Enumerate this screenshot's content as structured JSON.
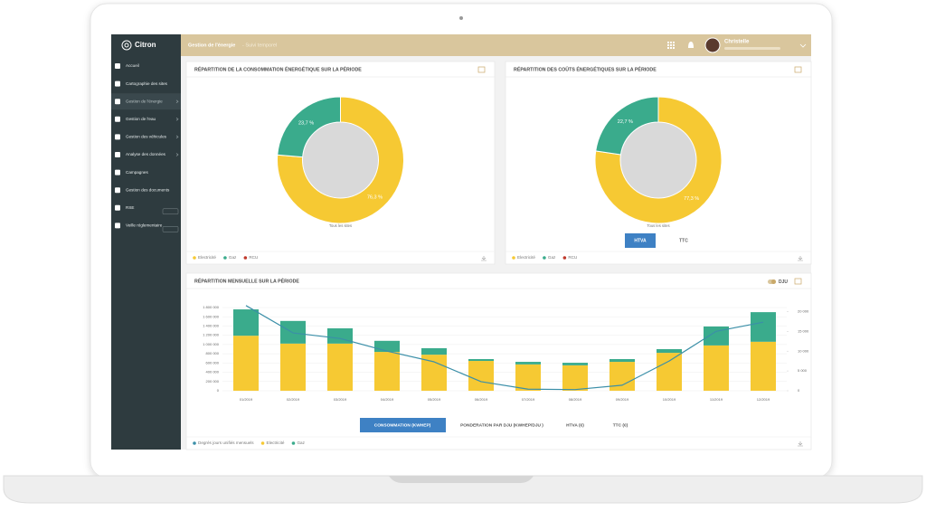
{
  "app": {
    "logo": "Citron",
    "menu": [
      "Accueil",
      "Cartographie des sites",
      "Gestion de l'énergie",
      "Gestion de l'eau",
      "Gestion des véhicules",
      "Analyse des données",
      "Campagnes",
      "Gestion des documents",
      "RSE",
      "Veille réglementaire"
    ]
  },
  "header": {
    "title": "Gestion de l'énergie",
    "subtitle": "- Suivi temporel",
    "user": "Christelle"
  },
  "chart_data": [
    {
      "type": "donut",
      "title": "RÉPARTITION DE LA CONSOMMATION ÉNERGÉTIQUE SUR LA PÉRIODE",
      "categories": [
        "Electricité",
        "Gaz",
        "RCU"
      ],
      "values": [
        76.3,
        23.7,
        null
      ],
      "value_labels": [
        "76,3 %",
        "23,7 %",
        null
      ],
      "colors": [
        "#f6c933",
        "#3aab8c",
        "#c0392b"
      ],
      "caption": "Tous les sites"
    },
    {
      "type": "donut",
      "title": "RÉPARTITION DES COÛTS ÉNERGÉTIQUES SUR LA PÉRIODE",
      "categories": [
        "Electricité",
        "Gaz",
        "RCU"
      ],
      "values": [
        77.3,
        22.7,
        null
      ],
      "value_labels": [
        "77,3 %",
        "22,7 %",
        null
      ],
      "colors": [
        "#f6c933",
        "#3aab8c",
        "#c0392b"
      ],
      "caption": "Tous les sites",
      "toggle": [
        "HTVA",
        "TTC"
      ]
    },
    {
      "type": "stacked_bar",
      "title": "RÉPARTITION MENSUELLE SUR LA PÉRIODE",
      "y2_toggle_label": "DJU",
      "categories": [
        "01/2019",
        "02/2019",
        "03/2019",
        "04/2019",
        "05/2019",
        "06/2019",
        "07/2019",
        "08/2019",
        "09/2019",
        "10/2019",
        "11/2019",
        "12/2019"
      ],
      "series": [
        {
          "name": "Degrés jours unifiés mensuels",
          "type": "line",
          "axis": "y2",
          "color": "#3b8fa8",
          "values": [
            21500,
            14600,
            13200,
            10000,
            7300,
            2300,
            400,
            300,
            1400,
            7500,
            15000,
            17300
          ]
        },
        {
          "name": "Electricité",
          "type": "bar",
          "color": "#f6c933",
          "values": [
            1190000,
            1020000,
            1020000,
            840000,
            780000,
            645000,
            570000,
            550000,
            625000,
            820000,
            980000,
            1060000
          ]
        },
        {
          "name": "Gaz",
          "type": "bar",
          "color": "#3aab8c",
          "values": [
            570000,
            490000,
            330000,
            240000,
            140000,
            40000,
            55000,
            55000,
            60000,
            80000,
            410000,
            640000
          ]
        }
      ],
      "ylim": [
        0,
        1800000
      ],
      "yticks": [
        0,
        {
          "value": 200000,
          "label": "200 000"
        },
        {
          "value": 400000,
          "label": "400 000"
        },
        {
          "value": 600000,
          "label": "600 000"
        },
        {
          "value": 800000,
          "label": "800 000"
        },
        {
          "value": 1000000,
          "label": "1 000 000"
        },
        {
          "value": 1200000,
          "label": "1 200 000"
        },
        {
          "value": 1400000,
          "label": "1 400 000"
        },
        {
          "value": 1600000,
          "label": "1 600 000"
        },
        {
          "value": 1800000,
          "label": "1 800 000"
        }
      ],
      "y2lim": [
        0,
        21000
      ],
      "y2ticks": [
        0,
        {
          "value": 5000,
          "label": "5 000"
        },
        {
          "value": 10000,
          "label": "10 000"
        },
        {
          "value": 15000,
          "label": "15 000"
        },
        {
          "value": 20000,
          "label": "20 000"
        }
      ],
      "tabs": [
        "CONSOMMATION (KWHEP)",
        "PONDERATION PAR DJU (KWHEP/DJU )",
        "HTVA (€)",
        "TTC (€)"
      ]
    }
  ]
}
